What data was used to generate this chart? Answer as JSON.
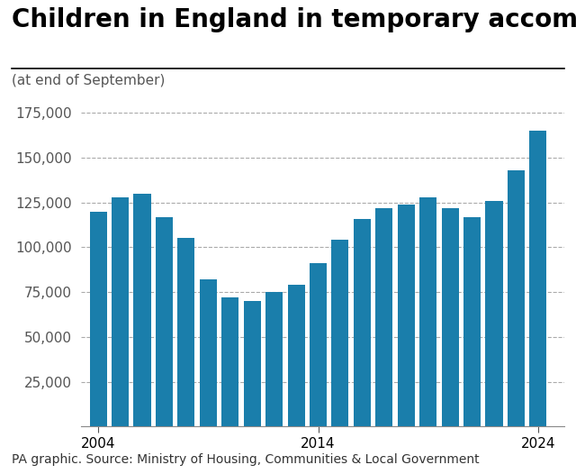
{
  "title": "Children in England in temporary accommodation",
  "subtitle": "(at end of September)",
  "footnote": "PA graphic. Source: Ministry of Housing, Communities & Local Government",
  "years": [
    2004,
    2005,
    2006,
    2007,
    2008,
    2009,
    2010,
    2011,
    2012,
    2013,
    2014,
    2015,
    2016,
    2017,
    2018,
    2019,
    2020,
    2021,
    2022,
    2023,
    2024
  ],
  "values": [
    120000,
    128000,
    130000,
    117000,
    105000,
    82000,
    72000,
    70000,
    75000,
    79000,
    91000,
    104000,
    116000,
    122000,
    124000,
    128000,
    122000,
    117000,
    126000,
    143000,
    165000
  ],
  "bar_color": "#1a7eab",
  "background_color": "#ffffff",
  "ylim": [
    0,
    185000
  ],
  "yticks": [
    25000,
    50000,
    75000,
    100000,
    125000,
    150000,
    175000
  ],
  "xtick_positions": [
    2004,
    2014,
    2024
  ],
  "xtick_labels": [
    "2004",
    "2014",
    "2024"
  ],
  "title_fontsize": 20,
  "subtitle_fontsize": 11,
  "tick_fontsize": 11,
  "footnote_fontsize": 10
}
